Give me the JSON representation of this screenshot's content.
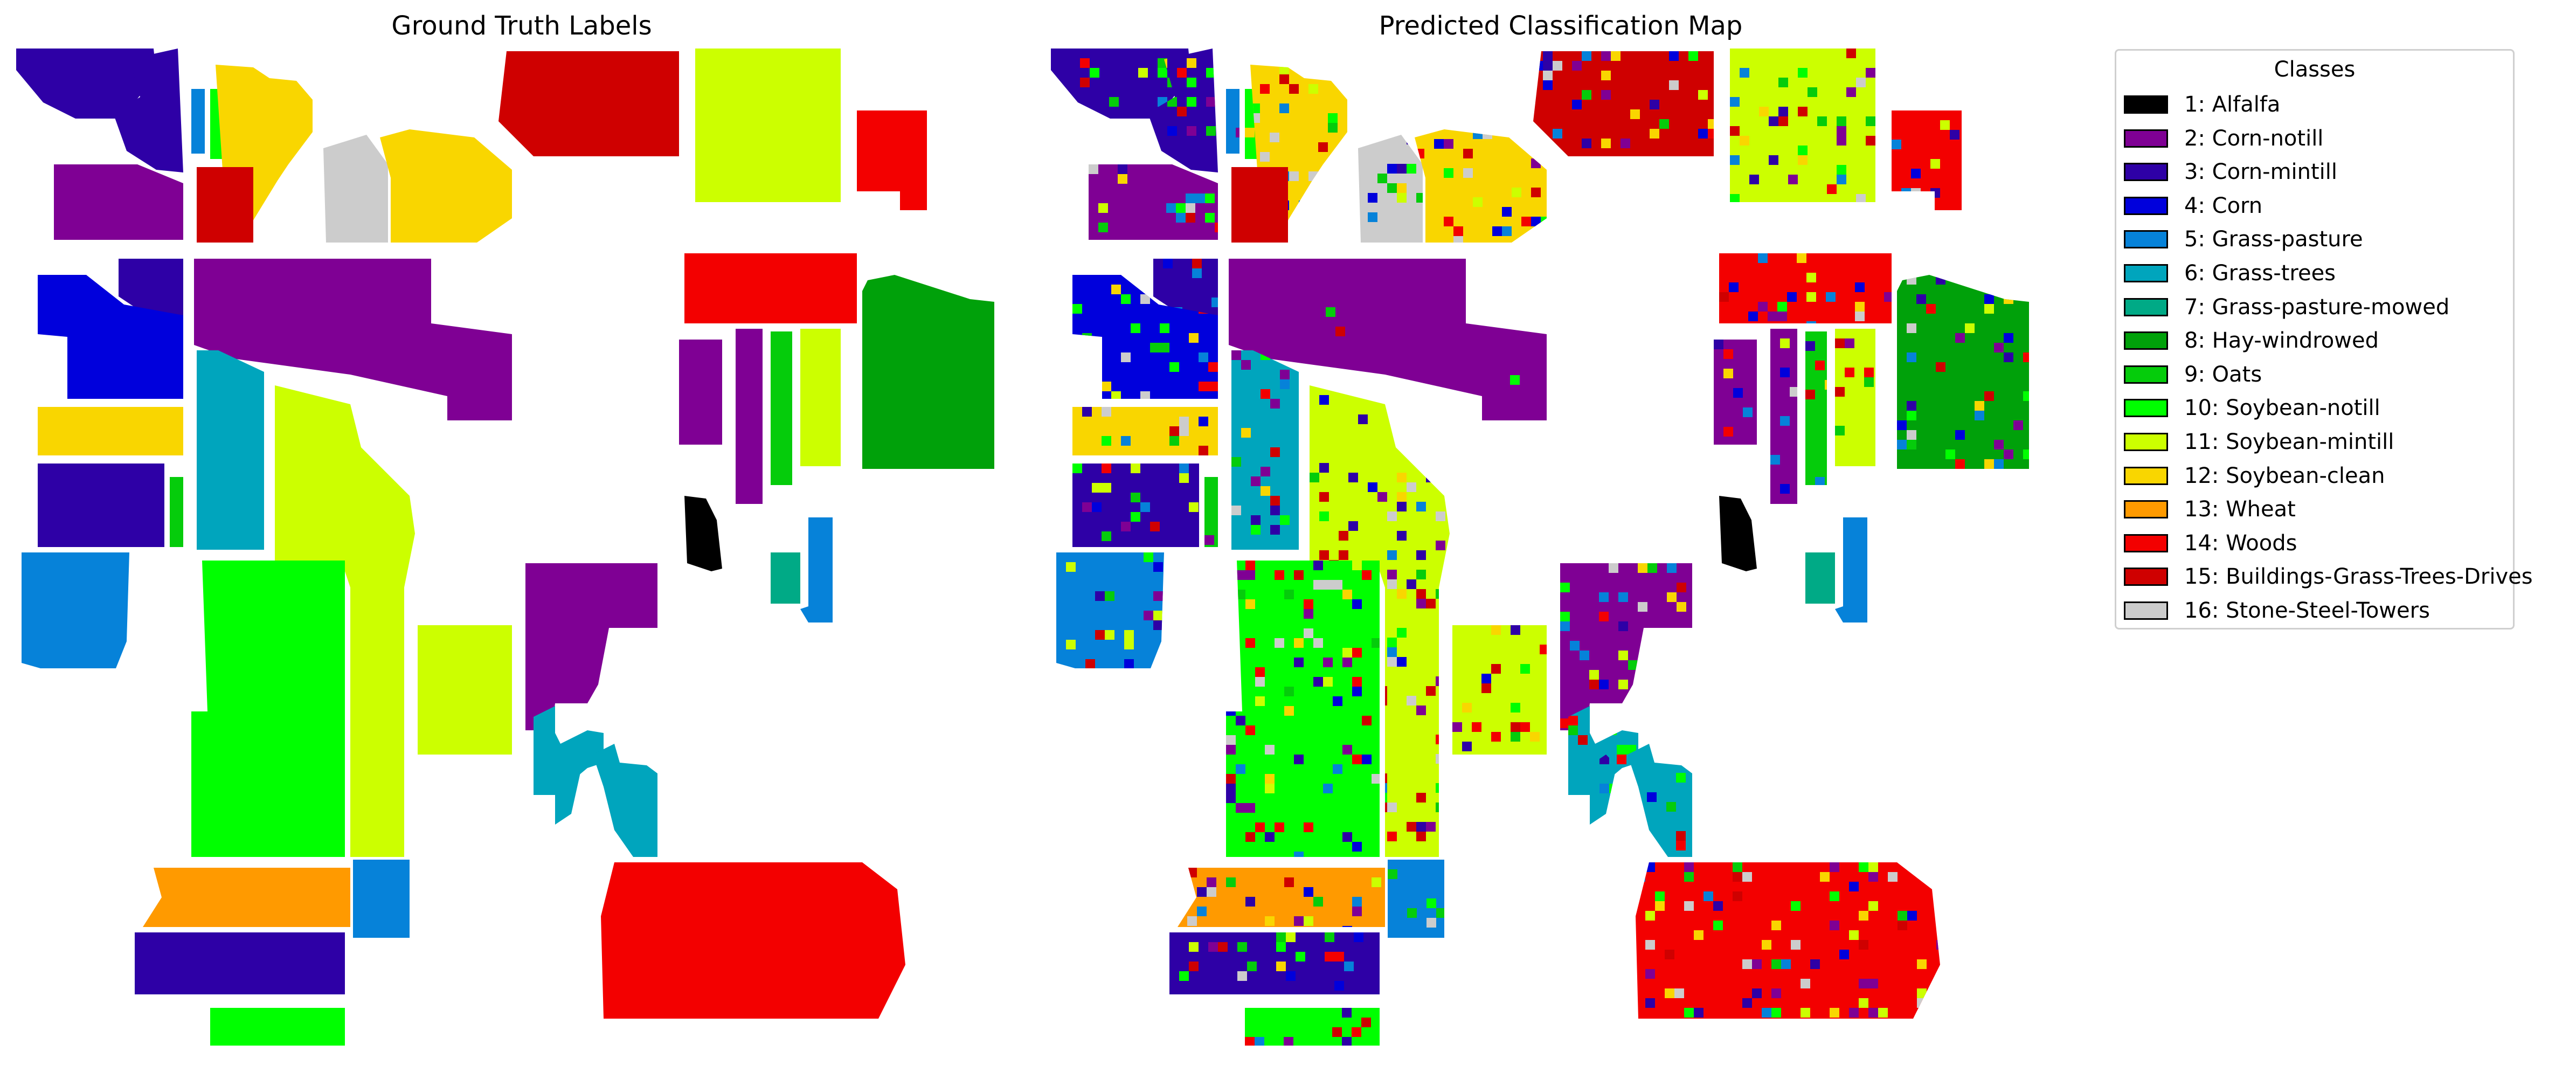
{
  "panels": {
    "left_title": "Ground Truth Labels",
    "right_title": "Predicted Classification Map"
  },
  "legend": {
    "title": "Classes",
    "items": [
      {
        "label": "1: Alfalfa",
        "color": "#000000"
      },
      {
        "label": "2: Corn-notill",
        "color": "#7f0094"
      },
      {
        "label": "3: Corn-mintill",
        "color": "#2e00a6"
      },
      {
        "label": "4: Corn",
        "color": "#0000dc"
      },
      {
        "label": "5: Grass-pasture",
        "color": "#0682d9"
      },
      {
        "label": "6: Grass-trees",
        "color": "#00a5bd"
      },
      {
        "label": "7: Grass-pasture-mowed",
        "color": "#00aa86"
      },
      {
        "label": "8: Hay-windrowed",
        "color": "#00a10a"
      },
      {
        "label": "9: Oats",
        "color": "#05cc0b"
      },
      {
        "label": "10: Soybean-notill",
        "color": "#00ff00"
      },
      {
        "label": "11: Soybean-mintill",
        "color": "#ccff00"
      },
      {
        "label": "12: Soybean-clean",
        "color": "#f9d600"
      },
      {
        "label": "13: Wheat",
        "color": "#ff9a00"
      },
      {
        "label": "14: Woods",
        "color": "#f30000"
      },
      {
        "label": "15: Buildings-Grass-Trees-Drives",
        "color": "#cf0000"
      },
      {
        "label": "16: Stone-Steel-Towers",
        "color": "#cccccc"
      }
    ]
  },
  "chart_data": [
    {
      "type": "heatmap",
      "title": "Ground Truth Labels",
      "regions": [
        {
          "class": 3
        },
        {
          "class": 3
        },
        {
          "class": 5
        },
        {
          "class": 10
        },
        {
          "class": 12
        },
        {
          "class": 16
        },
        {
          "class": 12
        },
        {
          "class": 2
        },
        {
          "class": 15
        },
        {
          "class": 15
        },
        {
          "class": 11
        },
        {
          "class": 14
        },
        {
          "class": 3
        },
        {
          "class": 4
        },
        {
          "class": 2
        },
        {
          "class": 12
        },
        {
          "class": 3
        },
        {
          "class": 9
        },
        {
          "class": 6
        },
        {
          "class": 2
        },
        {
          "class": 11
        },
        {
          "class": 10
        },
        {
          "class": 11
        },
        {
          "class": 14
        },
        {
          "class": 2
        },
        {
          "class": 2
        },
        {
          "class": 9
        },
        {
          "class": 11
        },
        {
          "class": 8
        },
        {
          "class": 1
        },
        {
          "class": 7
        },
        {
          "class": 5
        },
        {
          "class": 5
        },
        {
          "class": 2
        },
        {
          "class": 6
        },
        {
          "class": 6
        },
        {
          "class": 6
        },
        {
          "class": 13
        },
        {
          "class": 5
        },
        {
          "class": 3
        },
        {
          "class": 10
        },
        {
          "class": 14
        }
      ]
    },
    {
      "type": "heatmap",
      "title": "Predicted Classification Map",
      "same_regions_as": "Ground Truth Labels",
      "misclassified_classes": [
        2,
        3,
        4,
        5,
        9,
        10,
        11,
        12,
        14,
        15,
        16
      ]
    }
  ]
}
